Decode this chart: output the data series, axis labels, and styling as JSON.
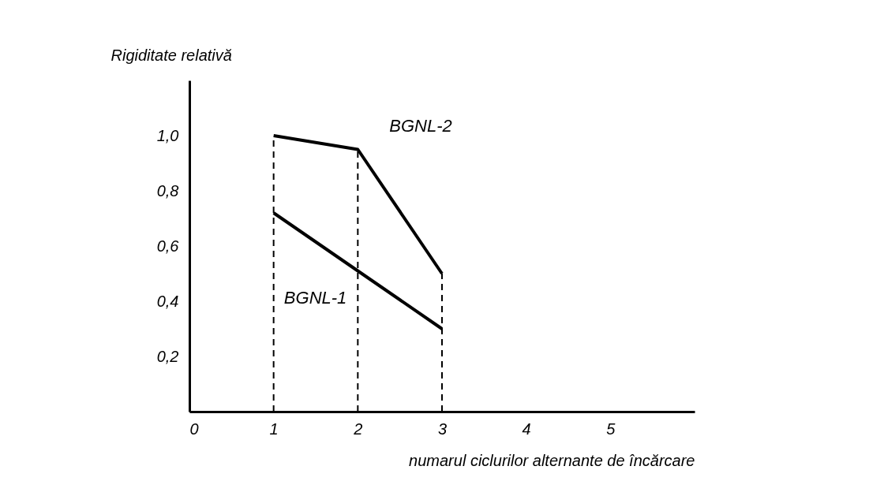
{
  "chart_data": {
    "type": "line",
    "xlabel": "numarul ciclurilor alternante de încărcare",
    "ylabel": "Rigiditate relativă",
    "xlim": [
      0,
      6
    ],
    "xticks": [
      0,
      1,
      2,
      3,
      4,
      5
    ],
    "ylim": [
      0,
      1.2
    ],
    "yticks": [
      {
        "value": 0.2,
        "label": "0,2"
      },
      {
        "value": 0.4,
        "label": "0,4"
      },
      {
        "value": 0.6,
        "label": "0,6"
      },
      {
        "value": 0.8,
        "label": "0,8"
      },
      {
        "value": 1,
        "label": "1,0"
      }
    ],
    "x": [
      1,
      2,
      3
    ],
    "series": [
      {
        "name": "BGNL-2",
        "color": "#000000",
        "values": [
          1.0,
          0.95,
          0.5
        ]
      },
      {
        "name": "BGNL-1",
        "color": "#000000",
        "values": [
          0.72,
          0.51,
          0.3
        ]
      }
    ],
    "ref_lines": [
      {
        "axis": "x",
        "value": 1,
        "line_style": "dashed",
        "color": "#000000"
      },
      {
        "axis": "x",
        "value": 2,
        "line_style": "dashed",
        "color": "#000000"
      },
      {
        "axis": "x",
        "value": 3,
        "line_style": "dashed",
        "color": "#000000"
      }
    ],
    "grid": false,
    "legend": false,
    "marker": "none",
    "line_style": "solid"
  }
}
